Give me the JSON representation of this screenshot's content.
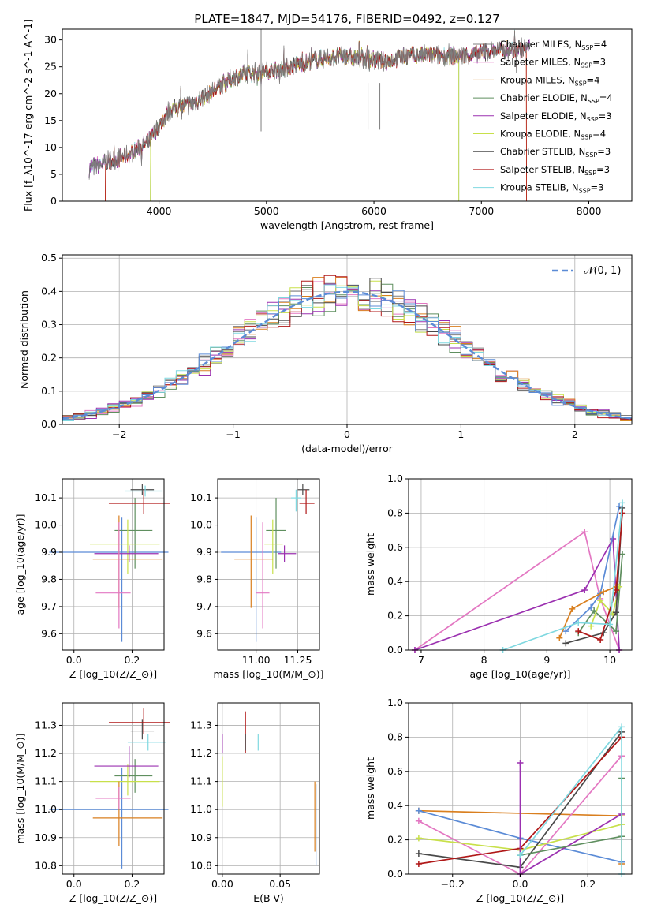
{
  "title": "PLATE=1847, MJD=54176, FIBERID=0492, z=0.127",
  "colors": {
    "chabrier_miles": "#7f7f7f",
    "salpeter_miles": "#e377c2",
    "kroupa_miles": "#d97f1f",
    "chabrier_elodie": "#5f8f5f",
    "salpeter_elodie": "#9b30b0",
    "kroupa_elodie": "#c8e04a",
    "chabrier_stelib": "#4a4a4a",
    "salpeter_stelib": "#b01818",
    "kroupa_stelib": "#7fd8e0",
    "blue": "#5b8bd6",
    "normal": "#5b8bd6"
  },
  "chart_data": [
    {
      "id": "spectrum",
      "type": "line",
      "xlabel": "wavelength [Angstrom, rest frame]",
      "ylabel": "Flux [f$_\\lambda$10$^{-17}$ erg cm$^{-2}$ s$^{-1}$ A$^{-1}$]",
      "xlim": [
        3100,
        8400
      ],
      "ylim": [
        0,
        32
      ],
      "xticks": [
        4000,
        5000,
        6000,
        7000,
        8000
      ],
      "yticks": [
        0,
        5,
        10,
        15,
        20,
        25,
        30
      ],
      "continuum": [
        [
          3350,
          6.2
        ],
        [
          3500,
          7.2
        ],
        [
          3700,
          8.5
        ],
        [
          3900,
          11
        ],
        [
          4000,
          14
        ],
        [
          4100,
          17
        ],
        [
          4300,
          18
        ],
        [
          4500,
          20.5
        ],
        [
          4700,
          23
        ],
        [
          4900,
          24
        ],
        [
          5100,
          24.5
        ],
        [
          5300,
          25.5
        ],
        [
          5500,
          26.5
        ],
        [
          5700,
          27
        ],
        [
          5900,
          26.5
        ],
        [
          6100,
          26
        ],
        [
          6300,
          27
        ],
        [
          6500,
          27.2
        ],
        [
          6700,
          27
        ],
        [
          6900,
          27.2
        ],
        [
          7100,
          28
        ],
        [
          7300,
          28.2
        ],
        [
          7450,
          28.5
        ]
      ],
      "legend": [
        {
          "label": "Chabrier MILES, N",
          "sub": "SSP",
          "val": "=4",
          "color": "chabrier_miles"
        },
        {
          "label": "Salpeter MILES, N",
          "sub": "SSP",
          "val": "=3",
          "color": "salpeter_miles"
        },
        {
          "label": "Kroupa MILES, N",
          "sub": "SSP",
          "val": "=4",
          "color": "kroupa_miles"
        },
        {
          "label": "Chabrier ELODIE, N",
          "sub": "SSP",
          "val": "=4",
          "color": "chabrier_elodie"
        },
        {
          "label": "Salpeter ELODIE, N",
          "sub": "SSP",
          "val": "=3",
          "color": "salpeter_elodie"
        },
        {
          "label": "Kroupa ELODIE, N",
          "sub": "SSP",
          "val": "=4",
          "color": "kroupa_elodie"
        },
        {
          "label": "Chabrier STELIB, N",
          "sub": "SSP",
          "val": "=3",
          "color": "chabrier_stelib"
        },
        {
          "label": "Salpeter STELIB, N",
          "sub": "SSP",
          "val": "=3",
          "color": "salpeter_stelib"
        },
        {
          "label": "Kroupa STELIB, N",
          "sub": "SSP",
          "val": "=3",
          "color": "kroupa_stelib"
        }
      ],
      "model_ranges": [
        {
          "color": "kroupa_miles",
          "start": 3500,
          "end": 7420
        },
        {
          "color": "salpeter_stelib",
          "start": 3500,
          "end": 7420
        },
        {
          "color": "kroupa_elodie",
          "start": 3920,
          "end": 6790
        },
        {
          "color": "chabrier_elodie",
          "start": 3920,
          "end": 6790
        }
      ]
    },
    {
      "id": "residuals",
      "type": "histogram",
      "xlabel": "(data-model)/error",
      "ylabel": "Normed distribution",
      "xlim": [
        -2.5,
        2.5
      ],
      "ylim": [
        0,
        0.51
      ],
      "xticks": [
        -2,
        -1,
        0,
        1,
        2
      ],
      "yticks": [
        0.0,
        0.1,
        0.2,
        0.3,
        0.4,
        0.5
      ],
      "legend": "$\\mathcal{N}(0, 1)$",
      "series_colors": [
        "chabrier_miles",
        "salpeter_miles",
        "kroupa_miles",
        "chabrier_elodie",
        "salpeter_elodie",
        "kroupa_elodie",
        "chabrier_stelib",
        "salpeter_stelib",
        "kroupa_stelib",
        "blue"
      ]
    },
    {
      "id": "age_vs_Z",
      "type": "errorbar",
      "xlabel": "Z [log$_{10}$($Z/Z_\\odot$)]",
      "ylabel": "age  [log$_{10}$($age/yr$)]",
      "xlim": [
        -0.04,
        0.31
      ],
      "ylim": [
        9.54,
        10.17
      ],
      "xticks": [
        0.0,
        0.2
      ],
      "yticks": [
        9.6,
        9.7,
        9.8,
        9.9,
        10.0,
        10.1
      ],
      "points": [
        {
          "x": 0.165,
          "xerr": [
            0.25,
            0.16
          ],
          "y": 9.9,
          "yerr": [
            0.33,
            0.13
          ],
          "color": "blue"
        },
        {
          "x": 0.21,
          "xerr": [
            0.07,
            0.06
          ],
          "y": 9.98,
          "yerr": [
            0.14,
            0.12
          ],
          "color": "chabrier_elodie"
        },
        {
          "x": 0.185,
          "xerr": [
            0.13,
            0.11
          ],
          "y": 9.93,
          "yerr": [
            0.11,
            0.09
          ],
          "color": "kroupa_elodie"
        },
        {
          "x": 0.235,
          "xerr": [
            0.04,
            0.04
          ],
          "y": 10.13,
          "yerr": [
            0.02,
            0.02
          ],
          "color": "chabrier_stelib"
        },
        {
          "x": 0.24,
          "xerr": [
            0.12,
            0.09
          ],
          "y": 10.08,
          "yerr": [
            0.04,
            0.05
          ],
          "color": "salpeter_stelib"
        },
        {
          "x": 0.245,
          "xerr": [
            0.07,
            0.06
          ],
          "y": 10.125,
          "yerr": [
            0.02,
            0.02
          ],
          "color": "kroupa_stelib"
        },
        {
          "x": 0.19,
          "xerr": [
            0.12,
            0.1
          ],
          "y": 9.895,
          "yerr": [
            0.03,
            0.03
          ],
          "color": "salpeter_elodie"
        },
        {
          "x": 0.155,
          "xerr": [
            0.09,
            0.15
          ],
          "y": 9.875,
          "yerr": [
            0.18,
            0.16
          ],
          "color": "kroupa_miles"
        },
        {
          "x": 0.155,
          "xerr": [
            0.08,
            0.04
          ],
          "y": 9.75,
          "yerr": [
            0.13,
            0.26
          ],
          "color": "salpeter_miles"
        }
      ]
    },
    {
      "id": "age_vs_mass",
      "type": "errorbar",
      "xlabel": "mass [log$_{10}$($M/M_\\odot$)]",
      "ylabel": "",
      "xlim": [
        10.77,
        11.38
      ],
      "ylim": [
        9.54,
        10.17
      ],
      "xticks": [
        11.0,
        11.25
      ],
      "yticks": [
        9.6,
        9.7,
        9.8,
        9.9,
        10.0,
        10.1
      ],
      "points": [
        {
          "x": 11.0,
          "xerr": [
            0.21,
            0.15
          ],
          "y": 9.9,
          "yerr": [
            0.33,
            0.13
          ],
          "color": "blue"
        },
        {
          "x": 11.12,
          "xerr": [
            0.06,
            0.06
          ],
          "y": 9.98,
          "yerr": [
            0.14,
            0.12
          ],
          "color": "chabrier_elodie"
        },
        {
          "x": 11.1,
          "xerr": [
            0.05,
            0.06
          ],
          "y": 9.93,
          "yerr": [
            0.11,
            0.09
          ],
          "color": "kroupa_elodie"
        },
        {
          "x": 11.28,
          "xerr": [
            0.03,
            0.04
          ],
          "y": 10.13,
          "yerr": [
            0.02,
            0.02
          ],
          "color": "chabrier_stelib"
        },
        {
          "x": 11.3,
          "xerr": [
            0.04,
            0.05
          ],
          "y": 10.08,
          "yerr": [
            0.04,
            0.05
          ],
          "color": "salpeter_stelib"
        },
        {
          "x": 11.24,
          "xerr": [
            0.03,
            0.03
          ],
          "y": 10.1,
          "yerr": [
            0.05,
            0.03
          ],
          "color": "kroupa_stelib"
        },
        {
          "x": 11.17,
          "xerr": [
            0.04,
            0.07
          ],
          "y": 9.895,
          "yerr": [
            0.03,
            0.03
          ],
          "color": "salpeter_elodie"
        },
        {
          "x": 10.97,
          "xerr": [
            0.1,
            0.13
          ],
          "y": 9.875,
          "yerr": [
            0.18,
            0.16
          ],
          "color": "kroupa_miles"
        },
        {
          "x": 11.04,
          "xerr": [
            0.04,
            0.04
          ],
          "y": 9.75,
          "yerr": [
            0.13,
            0.26
          ],
          "color": "salpeter_miles"
        }
      ]
    },
    {
      "id": "weight_vs_age",
      "type": "line",
      "xlabel": "age  [log$_{10}$($age/yr$)]",
      "ylabel": "mass weight",
      "xlim": [
        6.8,
        10.35
      ],
      "ylim": [
        0,
        1
      ],
      "xticks": [
        7,
        8,
        9,
        10
      ],
      "yticks": [
        0.0,
        0.2,
        0.4,
        0.6,
        0.8,
        1.0
      ],
      "series": [
        {
          "color": "salpeter_miles",
          "x": [
            6.9,
            9.6,
            9.85,
            10.15
          ],
          "y": [
            0.0,
            0.69,
            0.3,
            0.0
          ]
        },
        {
          "color": "salpeter_elodie",
          "x": [
            6.9,
            9.6,
            10.05,
            10.15
          ],
          "y": [
            0.0,
            0.35,
            0.65,
            0.0
          ]
        },
        {
          "color": "blue",
          "x": [
            9.3,
            9.7,
            9.85,
            10.15
          ],
          "y": [
            0.11,
            0.25,
            0.33,
            0.84
          ]
        },
        {
          "color": "kroupa_miles",
          "x": [
            9.2,
            9.4,
            9.9,
            10.1
          ],
          "y": [
            0.07,
            0.24,
            0.34,
            0.37
          ]
        },
        {
          "color": "chabrier_elodie",
          "x": [
            9.5,
            9.75,
            10.1,
            10.2
          ],
          "y": [
            0.1,
            0.23,
            0.11,
            0.56
          ]
        },
        {
          "color": "kroupa_elodie",
          "x": [
            9.7,
            9.85,
            10.05,
            10.15
          ],
          "y": [
            0.14,
            0.29,
            0.21,
            0.37
          ]
        },
        {
          "color": "chabrier_stelib",
          "x": [
            9.3,
            9.9,
            10.1,
            10.2
          ],
          "y": [
            0.04,
            0.1,
            0.22,
            0.83
          ]
        },
        {
          "color": "salpeter_stelib",
          "x": [
            9.5,
            9.85,
            10.1,
            10.2
          ],
          "y": [
            0.11,
            0.06,
            0.35,
            0.8
          ]
        },
        {
          "color": "kroupa_stelib",
          "x": [
            8.3,
            9.5,
            10.0,
            10.2
          ],
          "y": [
            0.0,
            0.16,
            0.15,
            0.86
          ]
        }
      ]
    },
    {
      "id": "mass_vs_Z",
      "type": "errorbar",
      "xlabel": "Z [log$_{10}$($Z/Z_\\odot$)]",
      "ylabel": "mass [log$_{10}$($M/M_\\odot$)]",
      "xlim": [
        -0.04,
        0.31
      ],
      "ylim": [
        10.77,
        11.38
      ],
      "xticks": [
        0.0,
        0.2
      ],
      "yticks": [
        10.8,
        10.9,
        11.0,
        11.1,
        11.2,
        11.3
      ],
      "points": [
        {
          "x": 0.165,
          "xerr": [
            0.25,
            0.16
          ],
          "y": 11.0,
          "yerr": [
            0.21,
            0.15
          ],
          "color": "blue"
        },
        {
          "x": 0.21,
          "xerr": [
            0.07,
            0.06
          ],
          "y": 11.12,
          "yerr": [
            0.06,
            0.06
          ],
          "color": "chabrier_elodie"
        },
        {
          "x": 0.185,
          "xerr": [
            0.13,
            0.11
          ],
          "y": 11.1,
          "yerr": [
            0.05,
            0.06
          ],
          "color": "kroupa_elodie"
        },
        {
          "x": 0.235,
          "xerr": [
            0.04,
            0.04
          ],
          "y": 11.28,
          "yerr": [
            0.03,
            0.04
          ],
          "color": "chabrier_stelib"
        },
        {
          "x": 0.24,
          "xerr": [
            0.12,
            0.09
          ],
          "y": 11.31,
          "yerr": [
            0.04,
            0.05
          ],
          "color": "salpeter_stelib"
        },
        {
          "x": 0.255,
          "xerr": [
            0.07,
            0.06
          ],
          "y": 11.24,
          "yerr": [
            0.03,
            0.03
          ],
          "color": "kroupa_stelib"
        },
        {
          "x": 0.19,
          "xerr": [
            0.12,
            0.1
          ],
          "y": 11.155,
          "yerr": [
            0.04,
            0.07
          ],
          "color": "salpeter_elodie"
        },
        {
          "x": 0.155,
          "xerr": [
            0.09,
            0.15
          ],
          "y": 10.97,
          "yerr": [
            0.1,
            0.13
          ],
          "color": "kroupa_miles"
        },
        {
          "x": 0.155,
          "xerr": [
            0.08,
            0.04
          ],
          "y": 11.04,
          "yerr": [
            0.04,
            0.04
          ],
          "color": "salpeter_miles"
        }
      ]
    },
    {
      "id": "mass_vs_ebv",
      "type": "errorbar",
      "xlabel": "E(B-V)",
      "ylabel": "",
      "xlim": [
        -0.004,
        0.084
      ],
      "ylim": [
        10.77,
        11.38
      ],
      "xticks": [
        0.0,
        0.05
      ],
      "yticks": [
        10.8,
        10.9,
        11.0,
        11.1,
        11.2,
        11.3
      ],
      "points": [
        {
          "x": 0.0,
          "y": 11.1,
          "yerr": [
            0.09,
            0.09
          ],
          "color": "kroupa_elodie"
        },
        {
          "x": 0.0,
          "y": 11.23,
          "yerr": [
            0.03,
            0.04
          ],
          "color": "salpeter_elodie"
        },
        {
          "x": 0.02,
          "y": 11.28,
          "yerr": [
            0.08,
            0.07
          ],
          "color": "salpeter_stelib"
        },
        {
          "x": 0.02,
          "y": 11.24,
          "yerr": [
            0.03,
            0.03
          ],
          "color": "chabrier_stelib"
        },
        {
          "x": 0.031,
          "y": 11.24,
          "yerr": [
            0.03,
            0.03
          ],
          "color": "kroupa_stelib"
        },
        {
          "x": 0.08,
          "y": 10.97,
          "yerr": [
            0.12,
            0.13
          ],
          "color": "kroupa_miles"
        },
        {
          "x": 0.081,
          "y": 10.95,
          "yerr": [
            0.15,
            0.14
          ],
          "color": "blue"
        }
      ]
    },
    {
      "id": "weight_vs_Z",
      "type": "line",
      "xlabel": "Z [log$_{10}$($Z/Z_\\odot$)]",
      "ylabel": "mass weight",
      "xlim": [
        -0.33,
        0.33
      ],
      "ylim": [
        0,
        1
      ],
      "xticks": [
        -0.2,
        0.0,
        0.2
      ],
      "yticks": [
        0.0,
        0.2,
        0.4,
        0.6,
        0.8,
        1.0
      ],
      "series": [
        {
          "color": "kroupa_miles",
          "x": [
            -0.3,
            0.3,
            0.3
          ],
          "y": [
            0.37,
            0.34,
            0.06
          ]
        },
        {
          "color": "blue",
          "x": [
            -0.3,
            0.0,
            0.3
          ],
          "y": [
            0.37,
            0.21,
            0.07
          ]
        },
        {
          "color": "salpeter_miles",
          "x": [
            -0.3,
            0.0,
            0.3
          ],
          "y": [
            0.31,
            0.0,
            0.69
          ]
        },
        {
          "color": "kroupa_elodie",
          "x": [
            -0.3,
            0.0,
            0.3
          ],
          "y": [
            0.21,
            0.14,
            0.29
          ]
        },
        {
          "color": "chabrier_stelib",
          "x": [
            -0.3,
            0.0,
            0.3
          ],
          "y": [
            0.12,
            0.04,
            0.83
          ]
        },
        {
          "color": "salpeter_stelib",
          "x": [
            -0.3,
            0.0,
            0.3
          ],
          "y": [
            0.06,
            0.15,
            0.8
          ]
        },
        {
          "color": "salpeter_elodie",
          "x": [
            0.0,
            0.0,
            0.3
          ],
          "y": [
            0.65,
            0.0,
            0.35
          ]
        },
        {
          "color": "chabrier_elodie",
          "x": [
            0.0,
            0.3,
            0.3
          ],
          "y": [
            0.11,
            0.22,
            0.56
          ]
        },
        {
          "color": "kroupa_stelib",
          "x": [
            0.0,
            0.3,
            0.3
          ],
          "y": [
            0.11,
            0.86,
            0.0
          ]
        }
      ]
    }
  ]
}
